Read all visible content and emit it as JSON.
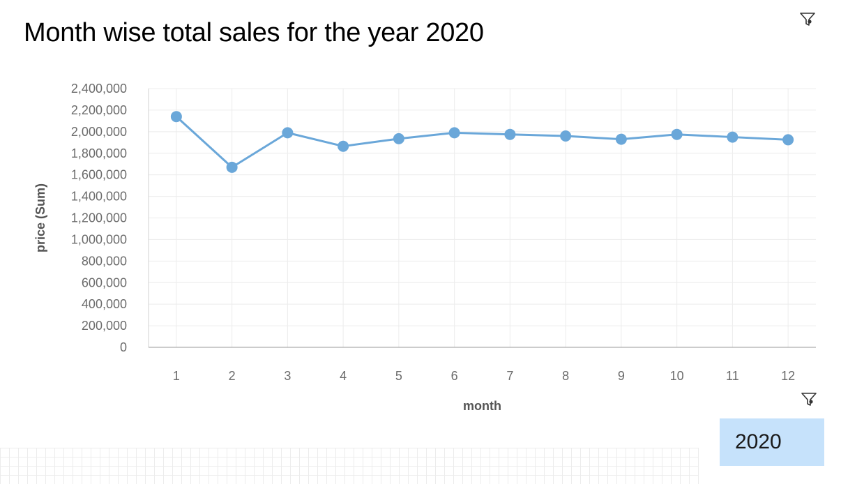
{
  "title": "Month wise total sales for the year 2020",
  "filter_selection": "2020",
  "icons": {
    "top_filter": "filter-icon",
    "bottom_filter": "filter-icon"
  },
  "colors": {
    "series": "#6aa7d9",
    "marker": "#6aa7d9",
    "selection_bg": "#c6e2fb"
  },
  "chart_data": {
    "type": "line",
    "title": "Month wise total sales for the year 2020",
    "xlabel": "month",
    "ylabel": "price (Sum)",
    "x": [
      1,
      2,
      3,
      4,
      5,
      6,
      7,
      8,
      9,
      10,
      11,
      12
    ],
    "y_ticks": [
      "0",
      "200,000",
      "400,000",
      "600,000",
      "800,000",
      "1,000,000",
      "1,200,000",
      "1,400,000",
      "1,600,000",
      "1,800,000",
      "2,000,000",
      "2,200,000",
      "2,400,000"
    ],
    "ylim": [
      0,
      2400000
    ],
    "series": [
      {
        "values": [
          2140000,
          1670000,
          1990000,
          1865000,
          1935000,
          1990000,
          1975000,
          1960000,
          1930000,
          1975000,
          1950000,
          1925000
        ]
      }
    ],
    "grid": true,
    "legend": "none"
  }
}
